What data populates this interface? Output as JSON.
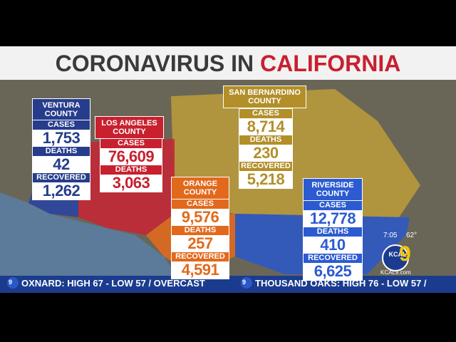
{
  "title": {
    "prefix": "CORONAVIRUS IN",
    "highlight": "CALIFORNIA"
  },
  "counties": [
    {
      "name": "VENTURA COUNTY",
      "stats": [
        {
          "label": "CASES",
          "value": "1,753"
        },
        {
          "label": "DEATHS",
          "value": "42"
        },
        {
          "label": "RECOVERED",
          "value": "1,262"
        }
      ]
    },
    {
      "name": "LOS ANGELES COUNTY",
      "stats": [
        {
          "label": "CASES",
          "value": "76,609"
        },
        {
          "label": "DEATHS",
          "value": "3,063"
        }
      ]
    },
    {
      "name": "ORANGE COUNTY",
      "stats": [
        {
          "label": "CASES",
          "value": "9,576"
        },
        {
          "label": "DEATHS",
          "value": "257"
        },
        {
          "label": "RECOVERED",
          "value": "4,591"
        }
      ]
    },
    {
      "name": "SAN BERNARDINO COUNTY",
      "stats": [
        {
          "label": "CASES",
          "value": "8,714"
        },
        {
          "label": "DEATHS",
          "value": "230"
        },
        {
          "label": "RECOVERED",
          "value": "5,218"
        }
      ]
    },
    {
      "name": "RIVERSIDE COUNTY",
      "stats": [
        {
          "label": "CASES",
          "value": "12,778"
        },
        {
          "label": "DEATHS",
          "value": "410"
        },
        {
          "label": "RECOVERED",
          "value": "6,625"
        }
      ]
    }
  ],
  "clock": {
    "time": "7:05",
    "temperature": "62°"
  },
  "logo": {
    "station": "KCAL",
    "channel": "9",
    "website": "KCAL9.com"
  },
  "ticker": [
    "OXNARD: HIGH 67 - LOW 57 / OVERCAST",
    "THOUSAND OAKS: HIGH 76 - LOW 57 /"
  ]
}
